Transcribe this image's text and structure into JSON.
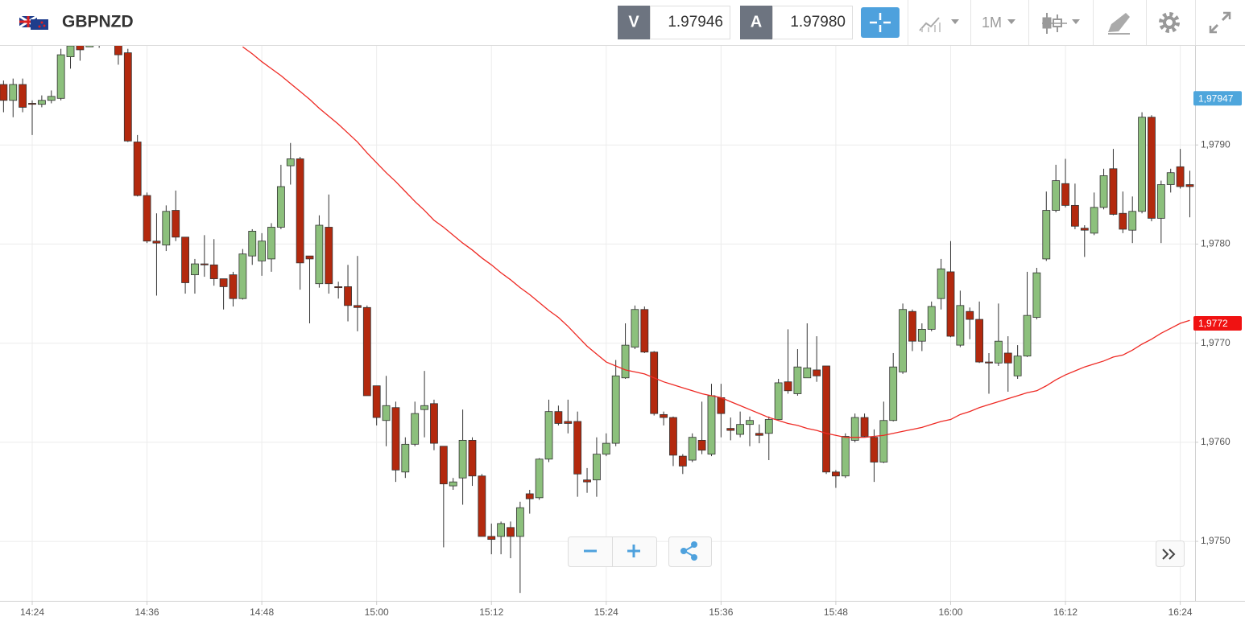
{
  "header": {
    "symbol": "GBPNZD",
    "bid_tag": "V",
    "bid": "1.97946",
    "ask_tag": "A",
    "ask": "1.97980",
    "timeframe": "1M"
  },
  "chart_data": {
    "type": "candlestick",
    "x": [
      null,
      null,
      null,
      "14:24",
      null,
      null,
      null,
      null,
      null,
      null,
      null,
      null,
      null,
      null,
      null,
      "14:36",
      null,
      null,
      null,
      null,
      null,
      null,
      null,
      null,
      null,
      null,
      null,
      "14:48",
      null,
      null,
      null,
      null,
      null,
      null,
      null,
      null,
      null,
      null,
      null,
      "15:00",
      null,
      null,
      null,
      null,
      null,
      null,
      null,
      null,
      null,
      null,
      null,
      "15:12",
      null,
      null,
      null,
      null,
      null,
      null,
      null,
      null,
      null,
      null,
      null,
      "15:24",
      null,
      null,
      null,
      null,
      null,
      null,
      null,
      null,
      null,
      null,
      null,
      "15:36",
      null,
      null,
      null,
      null,
      null,
      null,
      null,
      null,
      null,
      null,
      null,
      "15:48",
      null,
      null,
      null,
      null,
      null,
      null,
      null,
      null,
      null,
      null,
      null,
      "16:00",
      null,
      null,
      null,
      null,
      null,
      null,
      null,
      null,
      null,
      null,
      null,
      "16:12",
      null,
      null,
      null,
      null,
      null,
      null,
      null,
      null,
      null,
      null,
      null,
      "16:24",
      null
    ],
    "open": [
      1.97961,
      1.97945,
      1.97961,
      1.97942,
      1.97941,
      1.97945,
      1.97947,
      1.97989,
      1.98001,
      1.97999,
      1.98001,
      1.98015,
      1.98005,
      1.97993,
      1.97903,
      1.97849,
      1.97803,
      1.97799,
      1.97834,
      1.97807,
      1.97769,
      1.9778,
      1.97779,
      1.97765,
      1.97769,
      1.97745,
      1.97788,
      1.97783,
      1.97785,
      1.97817,
      1.97879,
      1.97886,
      1.97788,
      1.9776,
      1.97817,
      1.97757,
      1.97757,
      1.97738,
      1.97736,
      1.97657,
      1.97622,
      1.97635,
      1.9757,
      1.97598,
      1.97633,
      1.97639,
      1.97596,
      1.97556,
      1.97564,
      1.97602,
      1.97566,
      1.97505,
      1.97505,
      1.97514,
      1.97505,
      1.97548,
      1.97544,
      1.97583,
      1.97631,
      1.97621,
      1.97621,
      1.97562,
      1.97562,
      1.97588,
      1.97599,
      1.97665,
      1.97696,
      1.97734,
      1.97691,
      1.97628,
      1.97625,
      1.97586,
      1.97582,
      1.97602,
      1.97588,
      1.97645,
      1.97614,
      1.97608,
      1.97618,
      1.97609,
      1.97609,
      1.97623,
      1.97661,
      1.97649,
      1.97665,
      1.97673,
      1.97677,
      1.9757,
      1.97566,
      1.97602,
      1.97625,
      1.97605,
      1.9758,
      1.97622,
      1.97671,
      1.97732,
      1.97702,
      1.97714,
      1.97745,
      1.97772,
      1.97698,
      1.97732,
      1.97724,
      1.97681,
      1.9768,
      1.9769,
      1.97667,
      1.97687,
      1.97726,
      1.97785,
      1.97834,
      1.97861,
      1.97839,
      1.97816,
      1.97811,
      1.97837,
      1.97876,
      1.97831,
      1.97814,
      1.97833,
      1.97928,
      1.97826,
      1.9786,
      1.97878,
      1.9786
    ],
    "high": [
      1.97965,
      1.97967,
      1.97967,
      1.97945,
      1.9795,
      1.97955,
      1.97997,
      1.98005,
      1.98005,
      1.98005,
      1.9802,
      1.98022,
      1.9801,
      1.97997,
      1.9791,
      1.97852,
      1.97831,
      1.97839,
      1.97854,
      1.97807,
      1.97785,
      1.97809,
      1.97805,
      1.97765,
      1.97772,
      1.97795,
      1.97815,
      1.97811,
      1.97821,
      1.9788,
      1.97902,
      1.97888,
      1.97788,
      1.97829,
      1.9785,
      1.97762,
      1.97779,
      1.97788,
      1.97738,
      1.97657,
      1.97667,
      1.97641,
      1.97605,
      1.97641,
      1.97672,
      1.97643,
      1.97596,
      1.97564,
      1.97633,
      1.97605,
      1.97568,
      1.97518,
      1.9752,
      1.9752,
      1.9754,
      1.97552,
      1.97584,
      1.97643,
      1.97637,
      1.97643,
      1.97631,
      1.97574,
      1.97605,
      1.97609,
      1.97683,
      1.9772,
      1.97738,
      1.97737,
      1.97692,
      1.97631,
      1.97626,
      1.97588,
      1.97609,
      1.97641,
      1.97659,
      1.97659,
      1.97625,
      1.97631,
      1.97626,
      1.97618,
      1.97626,
      1.97664,
      1.97714,
      1.97694,
      1.9772,
      1.97707,
      1.97677,
      1.97572,
      1.97609,
      1.97629,
      1.97629,
      1.97613,
      1.97641,
      1.9769,
      1.9774,
      1.97734,
      1.9772,
      1.97742,
      1.97785,
      1.97803,
      1.97753,
      1.97736,
      1.97742,
      1.9769,
      1.9774,
      1.97707,
      1.97698,
      1.97772,
      1.97776,
      1.97853,
      1.9788,
      1.97886,
      1.97861,
      1.97819,
      1.97852,
      1.97876,
      1.97896,
      1.97853,
      1.97848,
      1.97933,
      1.9793,
      1.97864,
      1.97876,
      1.97896,
      1.97874
    ],
    "low": [
      1.97933,
      1.97928,
      1.97933,
      1.9791,
      1.97938,
      1.97942,
      1.97945,
      1.97977,
      1.97985,
      1.97999,
      1.97998,
      1.98,
      1.97981,
      1.97903,
      1.97848,
      1.97801,
      1.97748,
      1.97793,
      1.97803,
      1.9775,
      1.9775,
      1.97767,
      1.97758,
      1.97734,
      1.97737,
      1.97744,
      1.97779,
      1.97768,
      1.97772,
      1.97815,
      1.9786,
      1.97754,
      1.9772,
      1.97756,
      1.9775,
      1.97745,
      1.97722,
      1.97712,
      1.97647,
      1.97617,
      1.97596,
      1.9756,
      1.97564,
      1.97596,
      1.97605,
      1.97592,
      1.97494,
      1.97552,
      1.97537,
      1.97556,
      1.97505,
      1.97487,
      1.97487,
      1.97483,
      1.97448,
      1.97528,
      1.97542,
      1.9758,
      1.97617,
      1.97609,
      1.97545,
      1.97549,
      1.97545,
      1.97586,
      1.97596,
      1.97664,
      1.97694,
      1.9769,
      1.97627,
      1.97617,
      1.97576,
      1.97568,
      1.9758,
      1.97588,
      1.97586,
      1.97605,
      1.97602,
      1.97605,
      1.97596,
      1.97599,
      1.97582,
      1.97623,
      1.97649,
      1.97647,
      1.97665,
      1.97661,
      1.97568,
      1.97554,
      1.97564,
      1.976,
      1.97605,
      1.9756,
      1.97579,
      1.97621,
      1.97669,
      1.97692,
      1.97692,
      1.97712,
      1.97734,
      1.97706,
      1.97696,
      1.97704,
      1.9768,
      1.97649,
      1.97677,
      1.97651,
      1.97664,
      1.97686,
      1.97724,
      1.97783,
      1.97832,
      1.97837,
      1.97815,
      1.97787,
      1.97809,
      1.97835,
      1.97829,
      1.97811,
      1.97801,
      1.97831,
      1.97823,
      1.97801,
      1.97852,
      1.97856,
      1.97827
    ],
    "close": [
      1.97945,
      1.97961,
      1.97938,
      1.97941,
      1.97945,
      1.97949,
      1.97991,
      1.98,
      1.97996,
      1.98001,
      1.98015,
      1.98008,
      1.97991,
      1.97904,
      1.97849,
      1.97803,
      1.97801,
      1.97833,
      1.97807,
      1.97761,
      1.9778,
      1.97779,
      1.97765,
      1.97757,
      1.97745,
      1.9779,
      1.97813,
      1.97803,
      1.97817,
      1.97858,
      1.97886,
      1.97781,
      1.97785,
      1.97819,
      1.9776,
      1.97756,
      1.97738,
      1.97736,
      1.97647,
      1.97625,
      1.97637,
      1.97572,
      1.97598,
      1.97629,
      1.97637,
      1.97599,
      1.97558,
      1.9756,
      1.97602,
      1.97566,
      1.97505,
      1.97502,
      1.97518,
      1.97505,
      1.97534,
      1.97543,
      1.97583,
      1.97631,
      1.97619,
      1.97619,
      1.97568,
      1.9756,
      1.97588,
      1.97599,
      1.97667,
      1.97698,
      1.97734,
      1.97691,
      1.97629,
      1.97625,
      1.97587,
      1.97576,
      1.97605,
      1.97592,
      1.97647,
      1.97629,
      1.97612,
      1.97618,
      1.97622,
      1.97607,
      1.97623,
      1.9766,
      1.97652,
      1.97676,
      1.97675,
      1.97667,
      1.9757,
      1.97566,
      1.97606,
      1.97625,
      1.97606,
      1.9758,
      1.97622,
      1.97676,
      1.97734,
      1.97702,
      1.97714,
      1.97737,
      1.97775,
      1.97707,
      1.97738,
      1.97724,
      1.97681,
      1.9768,
      1.97702,
      1.9768,
      1.97687,
      1.97728,
      1.97771,
      1.97834,
      1.97864,
      1.97839,
      1.97818,
      1.97814,
      1.97837,
      1.97869,
      1.9783,
      1.97815,
      1.97833,
      1.97928,
      1.97826,
      1.9786,
      1.97872,
      1.97858,
      1.97858
    ],
    "up_color": "#8cc07c",
    "down_color": "#b3290e",
    "line": {
      "color": "#ee2a24",
      "values": [
        null,
        null,
        null,
        null,
        null,
        null,
        null,
        null,
        null,
        null,
        null,
        null,
        null,
        null,
        null,
        null,
        null,
        null,
        null,
        null,
        null,
        null,
        null,
        null,
        null,
        1.97999,
        1.97992,
        1.97984,
        1.97977,
        1.9797,
        1.97962,
        1.97954,
        1.97946,
        1.97937,
        1.97929,
        1.97921,
        1.97912,
        1.97903,
        1.97892,
        1.97882,
        1.97872,
        1.97863,
        1.97853,
        1.97843,
        1.97834,
        1.97824,
        1.97817,
        1.97809,
        1.97801,
        1.97794,
        1.97786,
        1.97779,
        1.97771,
        1.97764,
        1.97756,
        1.97749,
        1.97741,
        1.97733,
        1.97726,
        1.97717,
        1.97707,
        1.97697,
        1.97689,
        1.97681,
        1.97677,
        1.97673,
        1.97671,
        1.97669,
        1.97665,
        1.97661,
        1.97658,
        1.97655,
        1.97652,
        1.97649,
        1.97647,
        1.97645,
        1.97641,
        1.97637,
        1.97633,
        1.97629,
        1.97625,
        1.97622,
        1.97619,
        1.97617,
        1.97614,
        1.97612,
        1.97609,
        1.97607,
        1.97605,
        1.97605,
        1.97605,
        1.97606,
        1.97607,
        1.97609,
        1.97611,
        1.97613,
        1.97615,
        1.97618,
        1.97621,
        1.97623,
        1.97628,
        1.97631,
        1.97635,
        1.97638,
        1.97641,
        1.97644,
        1.97647,
        1.9765,
        1.97652,
        1.97657,
        1.97663,
        1.97668,
        1.97672,
        1.97676,
        1.97679,
        1.97682,
        1.97686,
        1.97688,
        1.97693,
        1.97699,
        1.97704,
        1.9771,
        1.97715,
        1.9772,
        1.97723
      ]
    },
    "ylim": [
      1.9744,
      1.98
    ],
    "yticks": [
      {
        "value": 1.975,
        "label": "1,9750"
      },
      {
        "value": 1.976,
        "label": "1,9760"
      },
      {
        "value": 1.977,
        "label": "1,9770"
      },
      {
        "value": 1.978,
        "label": "1,9780"
      },
      {
        "value": 1.979,
        "label": "1,9790"
      }
    ],
    "grid": true,
    "price_tags": [
      {
        "value": 1.97947,
        "label": "1,97947",
        "color": "#4ea6dc"
      },
      {
        "value": 1.9772,
        "label": "1,9772",
        "color": "#f01212"
      }
    ]
  }
}
